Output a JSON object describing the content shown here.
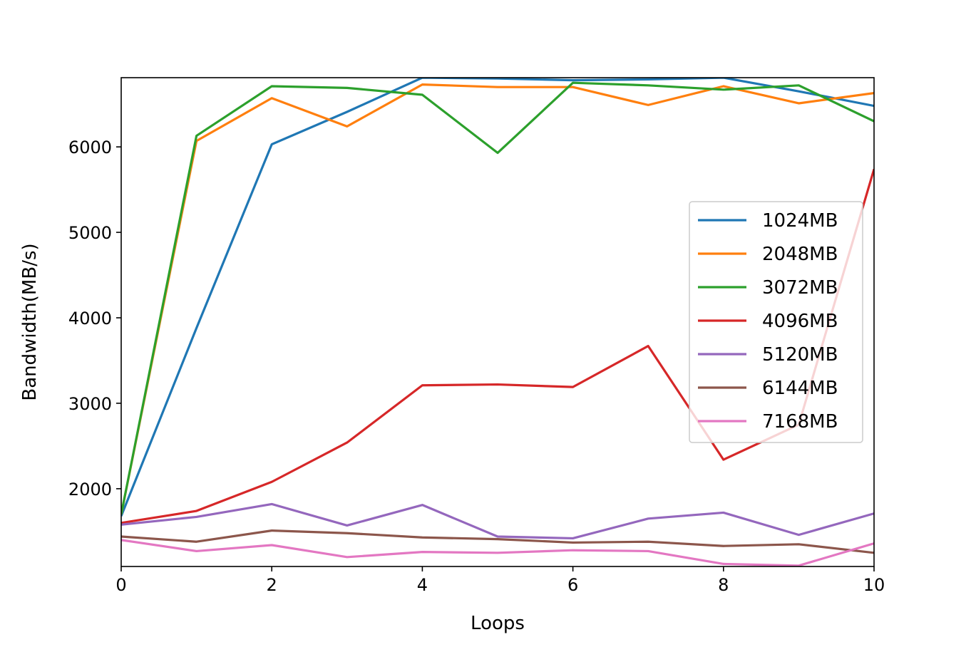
{
  "chart_data": {
    "type": "line",
    "title": "",
    "xlabel": "Loops",
    "ylabel": "Bandwidth(MB/s)",
    "xlim": [
      0,
      10
    ],
    "ylim": [
      1090,
      6810
    ],
    "xticks": [
      0,
      2,
      4,
      6,
      8,
      10
    ],
    "yticks": [
      2000,
      3000,
      4000,
      5000,
      6000
    ],
    "grid": false,
    "legend_position": "center-right",
    "x": [
      0,
      1,
      2,
      3,
      4,
      5,
      6,
      7,
      8,
      9,
      10
    ],
    "series": [
      {
        "name": "1024MB",
        "color": "#1f77b4",
        "values": [
          1680,
          3880,
          6030,
          6410,
          6810,
          6800,
          6780,
          6790,
          6810,
          6650,
          6480
        ]
      },
      {
        "name": "2048MB",
        "color": "#ff7f0e",
        "values": [
          1700,
          6070,
          6570,
          6240,
          6730,
          6700,
          6700,
          6490,
          6710,
          6510,
          6630
        ]
      },
      {
        "name": "3072MB",
        "color": "#2ca02c",
        "values": [
          1700,
          6130,
          6710,
          6690,
          6610,
          5930,
          6750,
          6720,
          6670,
          6720,
          6300
        ]
      },
      {
        "name": "4096MB",
        "color": "#d62728",
        "values": [
          1600,
          1740,
          2080,
          2540,
          3210,
          3220,
          3190,
          3670,
          2340,
          2750,
          5740
        ]
      },
      {
        "name": "5120MB",
        "color": "#9467bd",
        "values": [
          1580,
          1670,
          1820,
          1570,
          1810,
          1440,
          1420,
          1650,
          1720,
          1460,
          1710
        ]
      },
      {
        "name": "6144MB",
        "color": "#8c564b",
        "values": [
          1440,
          1380,
          1510,
          1480,
          1430,
          1410,
          1370,
          1380,
          1330,
          1350,
          1250
        ]
      },
      {
        "name": "7168MB",
        "color": "#e377c2",
        "values": [
          1400,
          1270,
          1340,
          1200,
          1260,
          1250,
          1280,
          1270,
          1120,
          1100,
          1360
        ]
      }
    ]
  }
}
